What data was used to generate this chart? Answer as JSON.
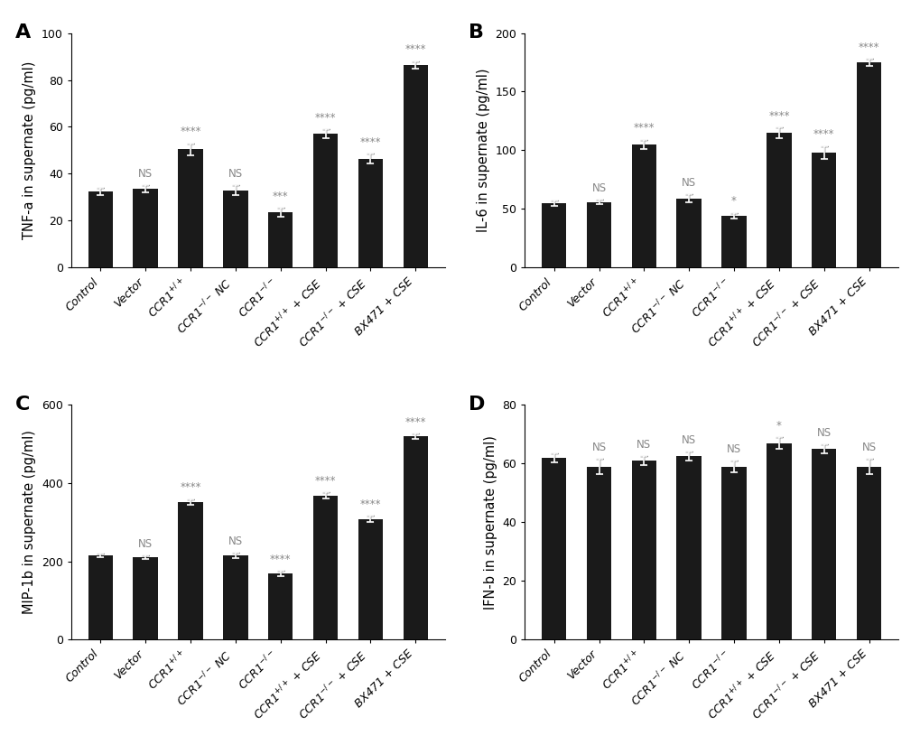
{
  "panels": [
    {
      "label": "A",
      "ylabel": "TNF-a in supernate (pg/ml)",
      "ylim": [
        0,
        100
      ],
      "yticks": [
        0,
        20,
        40,
        60,
        80,
        100
      ],
      "categories": [
        "Control",
        "Vector",
        "CCR1$^{+/+}$",
        "CCR1$^{-/-}$ NC",
        "CCR1$^{-/-}$",
        "CCR1$^{+/+}$ + CSE",
        "CCR1$^{-/-}$ + CSE",
        "BX471 + CSE"
      ],
      "values": [
        32.5,
        33.5,
        50.5,
        33.0,
        23.5,
        57.0,
        46.5,
        86.5
      ],
      "errors": [
        1.5,
        1.5,
        2.5,
        2.0,
        2.0,
        2.0,
        2.0,
        1.5
      ],
      "sig_labels": [
        "",
        "NS",
        "****",
        "NS",
        "***",
        "****",
        "****",
        "****"
      ]
    },
    {
      "label": "B",
      "ylabel": "IL-6 in supernate (pg/ml)",
      "ylim": [
        0,
        200
      ],
      "yticks": [
        0,
        50,
        100,
        150,
        200
      ],
      "categories": [
        "Control",
        "Vector",
        "CCR1$^{+/+}$",
        "CCR1$^{-/-}$ NC",
        "CCR1$^{-/-}$",
        "CCR1$^{+/+}$ + CSE",
        "CCR1$^{-/-}$ + CSE",
        "BX471 + CSE"
      ],
      "values": [
        55.0,
        56.0,
        105.0,
        59.0,
        44.0,
        115.0,
        98.0,
        175.0
      ],
      "errors": [
        2.5,
        2.0,
        4.0,
        3.5,
        2.5,
        4.5,
        5.5,
        3.0
      ],
      "sig_labels": [
        "",
        "NS",
        "****",
        "NS",
        "*",
        "****",
        "****",
        "****"
      ]
    },
    {
      "label": "C",
      "ylabel": "MIP-1b in supernate (pg/ml)",
      "ylim": [
        0,
        600
      ],
      "yticks": [
        0,
        200,
        400,
        600
      ],
      "categories": [
        "Control",
        "Vector",
        "CCR1$^{+/+}$",
        "CCR1$^{-/-}$ NC",
        "CCR1$^{-/-}$",
        "CCR1$^{+/+}$ + CSE",
        "CCR1$^{-/-}$ + CSE",
        "BX471 + CSE"
      ],
      "values": [
        215.0,
        210.0,
        352.0,
        215.0,
        168.0,
        368.0,
        308.0,
        520.0
      ],
      "errors": [
        5.0,
        5.0,
        7.0,
        6.0,
        7.0,
        8.0,
        8.0,
        6.0
      ],
      "sig_labels": [
        "",
        "NS",
        "****",
        "NS",
        "****",
        "****",
        "****",
        "****"
      ]
    },
    {
      "label": "D",
      "ylabel": "IFN-b in supernate (pg/ml)",
      "ylim": [
        0,
        80
      ],
      "yticks": [
        0,
        20,
        40,
        60,
        80
      ],
      "categories": [
        "Control",
        "Vector",
        "CCR1$^{+/+}$",
        "CCR1$^{-/-}$ NC",
        "CCR1$^{-/-}$",
        "CCR1$^{+/+}$ + CSE",
        "CCR1$^{-/-}$ + CSE",
        "BX471 + CSE"
      ],
      "values": [
        62.0,
        59.0,
        61.0,
        62.5,
        59.0,
        67.0,
        65.0,
        59.0
      ],
      "errors": [
        1.5,
        2.5,
        1.5,
        1.5,
        2.0,
        2.0,
        1.5,
        2.5
      ],
      "sig_labels": [
        "",
        "NS",
        "NS",
        "NS",
        "NS",
        "*",
        "NS",
        "NS"
      ]
    }
  ],
  "bar_color": "#1a1a1a",
  "bar_width": 0.55,
  "sig_color": "#888888",
  "sig_fontsize": 8.5,
  "panel_label_fontsize": 16,
  "tick_fontsize": 9,
  "ylabel_fontsize": 10.5,
  "xtick_rotation": 45,
  "xtick_ha": "right"
}
